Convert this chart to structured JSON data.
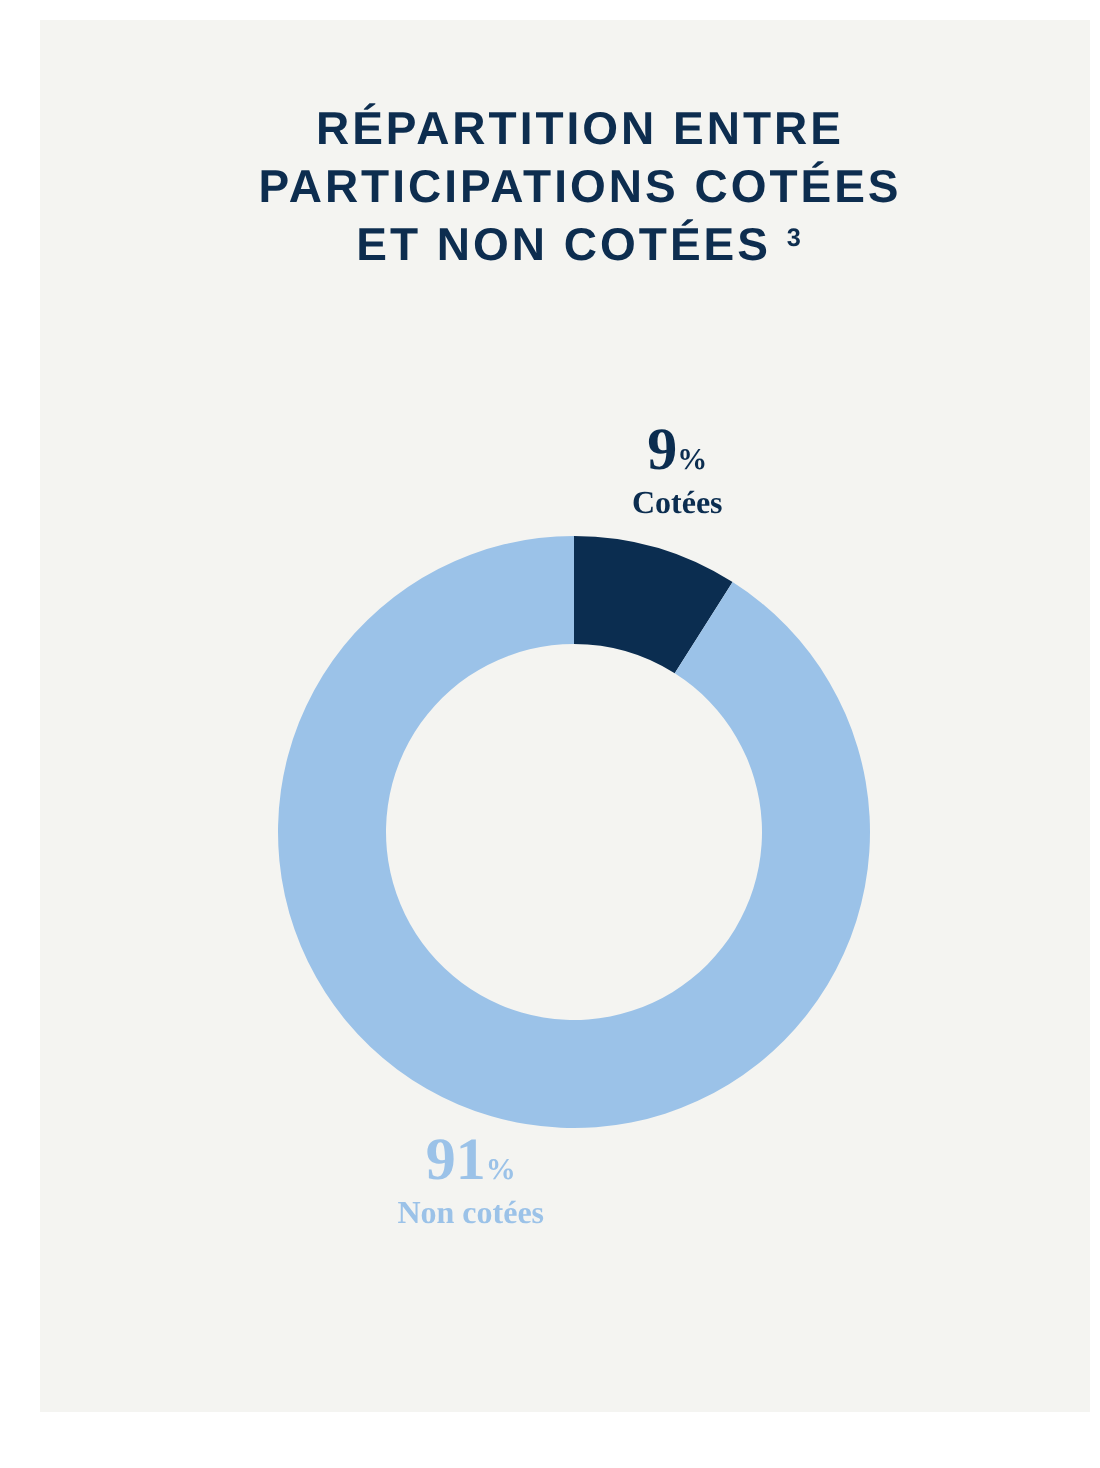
{
  "chart_data": {
    "type": "donut",
    "title": "RÉPARTITION ENTRE PARTICIPATIONS COTÉES ET NON COTÉES $^{3}$",
    "categories": [
      "Cotées",
      "Non cotées"
    ],
    "values": [
      9,
      91
    ],
    "colors": [
      "#0b2d50",
      "#9bc2e8"
    ],
    "value_labels": [
      "9%",
      "91%"
    ]
  }
}
